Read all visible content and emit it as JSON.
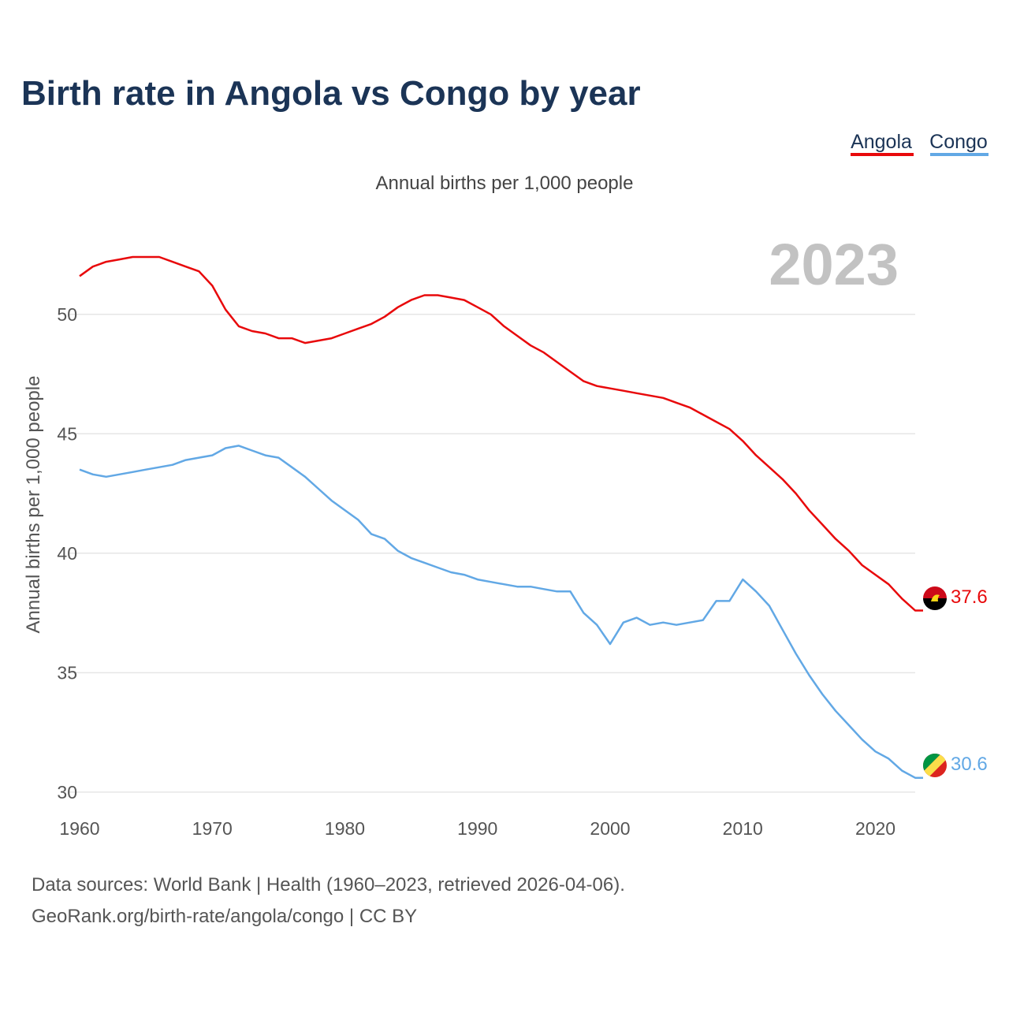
{
  "chart_data": {
    "type": "line",
    "title": "Birth rate in Angola vs Congo by year",
    "subtitle": "Annual births per 1,000 people",
    "ylabel": "Annual births per 1,000 people",
    "xlabel": "",
    "year_label": "2023",
    "xlim": [
      1960,
      2023
    ],
    "ylim": [
      29.5,
      52.5
    ],
    "x_ticks": [
      1960,
      1970,
      1980,
      1990,
      2000,
      2010,
      2020
    ],
    "y_ticks": [
      30,
      35,
      40,
      45,
      50
    ],
    "x": [
      1960,
      1961,
      1962,
      1963,
      1964,
      1965,
      1966,
      1967,
      1968,
      1969,
      1970,
      1971,
      1972,
      1973,
      1974,
      1975,
      1976,
      1977,
      1978,
      1979,
      1980,
      1981,
      1982,
      1983,
      1984,
      1985,
      1986,
      1987,
      1988,
      1989,
      1990,
      1991,
      1992,
      1993,
      1994,
      1995,
      1996,
      1997,
      1998,
      1999,
      2000,
      2001,
      2002,
      2003,
      2004,
      2005,
      2006,
      2007,
      2008,
      2009,
      2010,
      2011,
      2012,
      2013,
      2014,
      2015,
      2016,
      2017,
      2018,
      2019,
      2020,
      2021,
      2022,
      2023
    ],
    "series": [
      {
        "name": "Angola",
        "color": "#e8090b",
        "end_label": "37.6",
        "values": [
          51.6,
          52.0,
          52.2,
          52.3,
          52.4,
          52.4,
          52.4,
          52.2,
          52.0,
          51.8,
          51.2,
          50.2,
          49.5,
          49.3,
          49.2,
          49.0,
          49.0,
          48.8,
          48.9,
          49.0,
          49.2,
          49.4,
          49.6,
          49.9,
          50.3,
          50.6,
          50.8,
          50.8,
          50.7,
          50.6,
          50.3,
          50.0,
          49.5,
          49.1,
          48.7,
          48.4,
          48.0,
          47.6,
          47.2,
          47.0,
          46.9,
          46.8,
          46.7,
          46.6,
          46.5,
          46.3,
          46.1,
          45.8,
          45.5,
          45.2,
          44.7,
          44.1,
          43.6,
          43.1,
          42.5,
          41.8,
          41.2,
          40.6,
          40.1,
          39.5,
          39.1,
          38.7,
          38.1,
          37.6
        ]
      },
      {
        "name": "Congo",
        "color": "#62a8e5",
        "end_label": "30.6",
        "values": [
          43.5,
          43.3,
          43.2,
          43.3,
          43.4,
          43.5,
          43.6,
          43.7,
          43.9,
          44.0,
          44.1,
          44.4,
          44.5,
          44.3,
          44.1,
          44.0,
          43.6,
          43.2,
          42.7,
          42.2,
          41.8,
          41.4,
          40.8,
          40.6,
          40.1,
          39.8,
          39.6,
          39.4,
          39.2,
          39.1,
          38.9,
          38.8,
          38.7,
          38.6,
          38.6,
          38.5,
          38.4,
          38.4,
          37.5,
          37.0,
          36.2,
          37.1,
          37.3,
          37.0,
          37.1,
          37.0,
          37.1,
          37.2,
          38.0,
          38.0,
          38.9,
          38.4,
          37.8,
          36.8,
          35.8,
          34.9,
          34.1,
          33.4,
          32.8,
          32.2,
          31.7,
          31.4,
          30.9,
          30.6
        ]
      }
    ],
    "legend": [
      "Angola",
      "Congo"
    ],
    "legend_position": "top-right",
    "grid": true
  },
  "footer": {
    "line1": "Data sources: World Bank | Health (1960–2023, retrieved 2026-04-06).",
    "line2": "GeoRank.org/birth-rate/angola/congo | CC BY"
  },
  "icons": [
    "angola-flag-icon",
    "congo-flag-icon"
  ]
}
